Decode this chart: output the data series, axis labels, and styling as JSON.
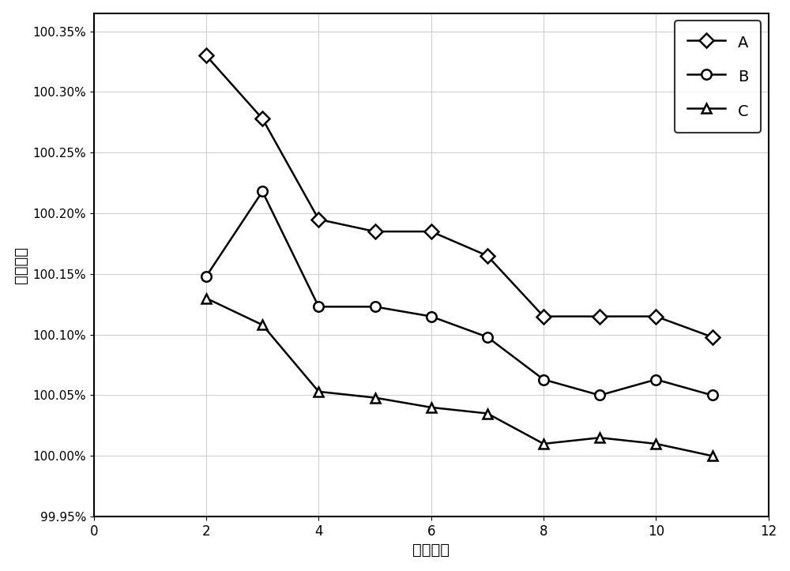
{
  "series_A": {
    "x": [
      2,
      3,
      4,
      5,
      6,
      7,
      8,
      9,
      10,
      11
    ],
    "y": [
      1.0033,
      1.00278,
      1.00195,
      1.00185,
      1.00185,
      1.00165,
      1.00115,
      1.00115,
      1.00115,
      1.00098
    ],
    "label": "A",
    "marker": "D",
    "color": "#000000"
  },
  "series_B": {
    "x": [
      2,
      3,
      4,
      5,
      6,
      7,
      8,
      9,
      10,
      11
    ],
    "y": [
      1.00148,
      1.00218,
      1.00123,
      1.00123,
      1.00115,
      1.00098,
      1.00063,
      1.0005,
      1.00063,
      1.0005
    ],
    "label": "B",
    "marker": "o",
    "color": "#000000"
  },
  "series_C": {
    "x": [
      2,
      3,
      4,
      5,
      6,
      7,
      8,
      9,
      10,
      11
    ],
    "y": [
      1.0013,
      1.00108,
      1.00053,
      1.00048,
      1.0004,
      1.00035,
      1.0001,
      1.00015,
      1.0001,
      1.0
    ],
    "label": "C",
    "marker": "^",
    "color": "#000000"
  },
  "xlabel": "循环次数",
  "ylabel": "库伦效率",
  "xlim": [
    0,
    12
  ],
  "ylim": [
    0.9995,
    1.00365
  ],
  "yticks": [
    0.9995,
    1.0,
    1.0005,
    1.001,
    1.0015,
    1.002,
    1.0025,
    1.003,
    1.0035
  ],
  "xticks": [
    0,
    2,
    4,
    6,
    8,
    10,
    12
  ],
  "figure_background": "#ffffff",
  "plot_background": "#ffffff",
  "grid_color": "#d0d0d0",
  "legend_loc": "upper right"
}
